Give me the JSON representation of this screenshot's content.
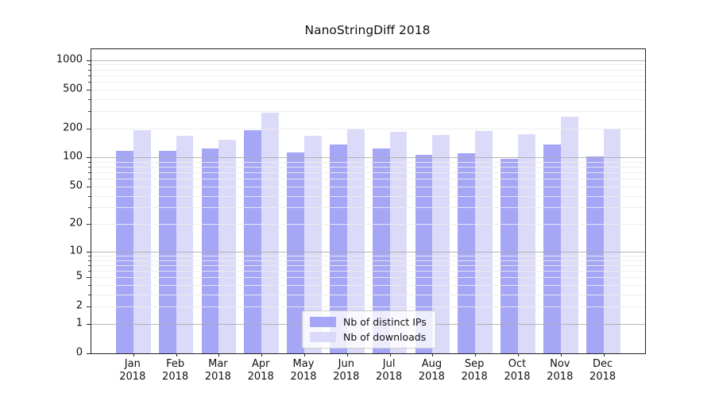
{
  "chart_data": {
    "type": "bar",
    "title": "NanoStringDiff 2018",
    "categories": [
      "Jan 2018",
      "Feb 2018",
      "Mar 2018",
      "Apr 2018",
      "May 2018",
      "Jun 2018",
      "Jul 2018",
      "Aug 2018",
      "Sep 2018",
      "Oct 2018",
      "Nov 2018",
      "Dec 2018"
    ],
    "x_tick_line1": [
      "Jan",
      "Feb",
      "Mar",
      "Apr",
      "May",
      "Jun",
      "Jul",
      "Aug",
      "Sep",
      "Oct",
      "Nov",
      "Dec"
    ],
    "x_tick_line2": [
      "2018",
      "2018",
      "2018",
      "2018",
      "2018",
      "2018",
      "2018",
      "2018",
      "2018",
      "2018",
      "2018",
      "2018"
    ],
    "series": [
      {
        "name": "Nb of distinct IPs",
        "color": "#a6a6f7",
        "values": [
          117,
          117,
          123,
          192,
          113,
          135,
          124,
          106,
          110,
          97,
          136,
          103
        ]
      },
      {
        "name": "Nb of downloads",
        "color": "#dbdbf9",
        "values": [
          191,
          167,
          151,
          291,
          168,
          196,
          184,
          170,
          189,
          173,
          264,
          197
        ]
      }
    ],
    "xlabel": "",
    "ylabel": "",
    "yscale": "log1p",
    "y_ticks": [
      0,
      1,
      2,
      5,
      10,
      20,
      50,
      100,
      200,
      500,
      1000
    ],
    "ylim": [
      0,
      1290
    ],
    "grid": "on",
    "legend_position": "inside lower-center"
  }
}
